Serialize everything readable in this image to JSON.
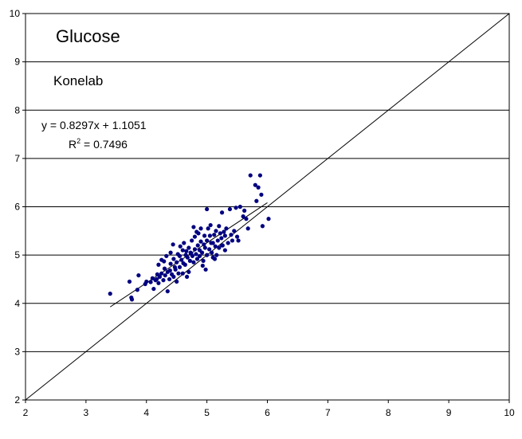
{
  "chart_data": {
    "type": "scatter",
    "title": "Glucose",
    "subtitle": "Konelab",
    "equation": "y = 0.8297x + 1.1051",
    "r2_prefix": "R",
    "r2_exp": "2",
    "r2_value": " = 0.7496",
    "xlabel": "",
    "ylabel": "",
    "xlim": [
      2,
      10
    ],
    "ylim": [
      2,
      10
    ],
    "xticks": [
      "2",
      "3",
      "4",
      "5",
      "6",
      "7",
      "8",
      "9",
      "10"
    ],
    "yticks": [
      "2",
      "3",
      "4",
      "5",
      "6",
      "7",
      "8",
      "9",
      "10"
    ],
    "grid": "horizontal",
    "identity_line": {
      "from": [
        2,
        2
      ],
      "to": [
        10,
        10
      ]
    },
    "trendline": {
      "slope": 0.8297,
      "intercept": 1.1051,
      "x_range": [
        3.4,
        6.0
      ]
    },
    "marker_color": "#000080",
    "points": [
      [
        3.4,
        4.2
      ],
      [
        3.72,
        4.45
      ],
      [
        3.75,
        4.12
      ],
      [
        3.76,
        4.08
      ],
      [
        3.85,
        4.28
      ],
      [
        3.87,
        4.58
      ],
      [
        3.98,
        4.4
      ],
      [
        4.0,
        4.45
      ],
      [
        4.07,
        4.44
      ],
      [
        4.1,
        4.52
      ],
      [
        4.12,
        4.3
      ],
      [
        4.15,
        4.48
      ],
      [
        4.18,
        4.6
      ],
      [
        4.2,
        4.42
      ],
      [
        4.2,
        4.8
      ],
      [
        4.22,
        4.55
      ],
      [
        4.25,
        4.62
      ],
      [
        4.25,
        4.9
      ],
      [
        4.28,
        4.48
      ],
      [
        4.3,
        4.72
      ],
      [
        4.31,
        4.58
      ],
      [
        4.33,
        4.98
      ],
      [
        4.35,
        4.25
      ],
      [
        4.35,
        4.65
      ],
      [
        4.38,
        4.5
      ],
      [
        4.4,
        4.82
      ],
      [
        4.4,
        5.05
      ],
      [
        4.42,
        4.6
      ],
      [
        4.44,
        5.22
      ],
      [
        4.45,
        4.55
      ],
      [
        4.45,
        4.92
      ],
      [
        4.48,
        4.7
      ],
      [
        4.5,
        4.45
      ],
      [
        4.5,
        4.85
      ],
      [
        4.52,
        5.02
      ],
      [
        4.53,
        4.62
      ],
      [
        4.55,
        4.75
      ],
      [
        4.55,
        4.98
      ],
      [
        4.58,
        4.9
      ],
      [
        4.6,
        5.1
      ],
      [
        4.6,
        4.62
      ],
      [
        4.62,
        5.25
      ],
      [
        4.64,
        4.8
      ],
      [
        4.65,
        5.0
      ],
      [
        4.66,
        5.08
      ],
      [
        4.68,
        4.95
      ],
      [
        4.7,
        5.15
      ],
      [
        4.7,
        4.65
      ],
      [
        4.72,
        4.88
      ],
      [
        4.73,
        5.05
      ],
      [
        4.75,
        5.3
      ],
      [
        4.76,
        4.98
      ],
      [
        4.78,
        4.85
      ],
      [
        4.78,
        5.58
      ],
      [
        4.8,
        5.12
      ],
      [
        4.8,
        5.38
      ],
      [
        4.82,
        5.02
      ],
      [
        4.84,
        4.92
      ],
      [
        4.85,
        5.2
      ],
      [
        4.86,
        5.45
      ],
      [
        4.88,
        5.1
      ],
      [
        4.88,
        4.98
      ],
      [
        4.9,
        5.28
      ],
      [
        4.9,
        5.55
      ],
      [
        4.92,
        5.05
      ],
      [
        4.93,
        4.78
      ],
      [
        4.95,
        5.22
      ],
      [
        4.96,
        5.4
      ],
      [
        4.97,
        5.15
      ],
      [
        4.98,
        4.7
      ],
      [
        5.0,
        5.3
      ],
      [
        5.0,
        5.0
      ],
      [
        5.0,
        5.95
      ],
      [
        5.02,
        5.55
      ],
      [
        5.04,
        5.12
      ],
      [
        5.05,
        5.4
      ],
      [
        5.06,
        5.62
      ],
      [
        5.08,
        5.05
      ],
      [
        5.1,
        5.25
      ],
      [
        5.1,
        4.95
      ],
      [
        5.12,
        5.42
      ],
      [
        5.14,
        5.18
      ],
      [
        5.15,
        5.5
      ],
      [
        5.16,
        5.0
      ],
      [
        5.18,
        5.3
      ],
      [
        5.2,
        5.6
      ],
      [
        5.2,
        5.15
      ],
      [
        5.22,
        5.45
      ],
      [
        5.24,
        5.35
      ],
      [
        5.25,
        5.88
      ],
      [
        5.26,
        5.2
      ],
      [
        5.28,
        5.48
      ],
      [
        5.3,
        5.1
      ],
      [
        5.3,
        5.4
      ],
      [
        5.32,
        5.55
      ],
      [
        5.35,
        5.25
      ],
      [
        5.38,
        5.95
      ],
      [
        5.4,
        5.42
      ],
      [
        5.42,
        5.3
      ],
      [
        5.45,
        5.5
      ],
      [
        5.48,
        5.98
      ],
      [
        5.5,
        5.38
      ],
      [
        5.52,
        5.3
      ],
      [
        5.55,
        6.0
      ],
      [
        5.6,
        5.8
      ],
      [
        5.62,
        5.92
      ],
      [
        5.65,
        5.75
      ],
      [
        5.68,
        5.55
      ],
      [
        5.72,
        6.65
      ],
      [
        5.8,
        6.45
      ],
      [
        5.82,
        6.12
      ],
      [
        5.85,
        6.4
      ],
      [
        5.88,
        6.65
      ],
      [
        5.9,
        6.25
      ],
      [
        5.92,
        5.6
      ],
      [
        6.02,
        5.75
      ],
      [
        5.25,
        5.2
      ],
      [
        4.56,
        5.18
      ],
      [
        4.47,
        4.75
      ],
      [
        4.67,
        4.55
      ],
      [
        4.83,
        5.48
      ],
      [
        5.07,
        5.25
      ],
      [
        4.61,
        4.83
      ],
      [
        4.94,
        4.88
      ],
      [
        5.13,
        4.92
      ],
      [
        4.74,
        5.03
      ],
      [
        4.29,
        4.87
      ],
      [
        4.17,
        4.5
      ],
      [
        4.39,
        4.68
      ]
    ]
  }
}
